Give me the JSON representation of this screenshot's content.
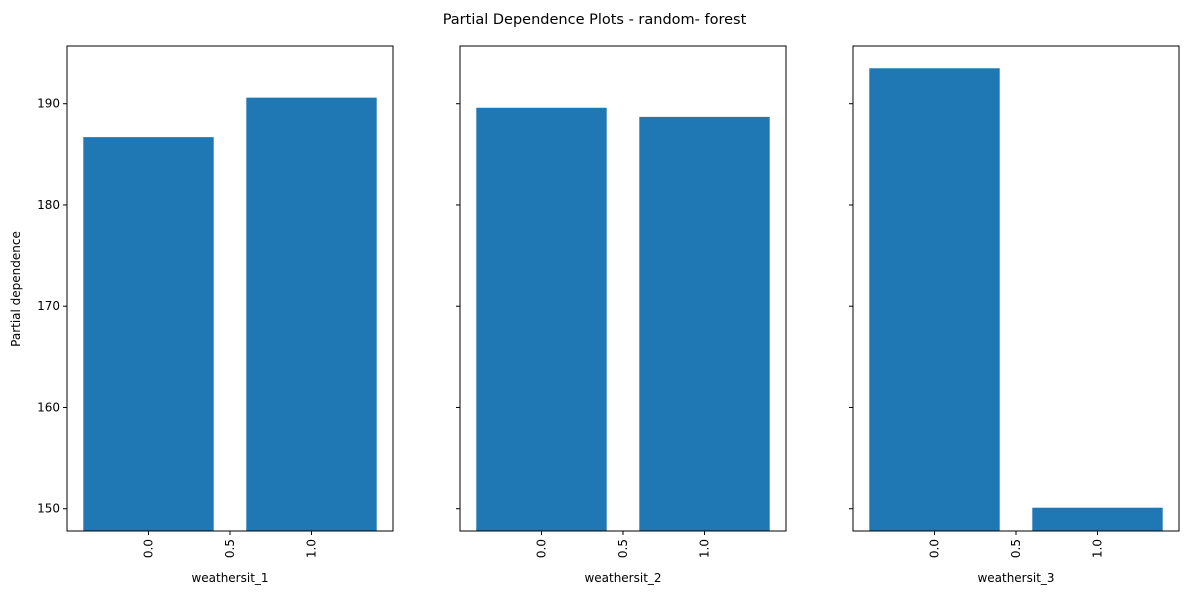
{
  "chart_data": {
    "type": "bar",
    "title": "Partial Dependence Plots - random- forest",
    "ylabel": "Partial dependence",
    "ylim": [
      147.8,
      195.7
    ],
    "yticks": [
      150,
      160,
      170,
      180,
      190
    ],
    "xlim": [
      -0.5,
      1.5
    ],
    "xticks": [
      "0.0",
      "0.5",
      "1.0"
    ],
    "bar_color": "#1f77b4",
    "subplots": [
      {
        "xlabel": "weathersit_1",
        "categories": [
          "0.0",
          "1.0"
        ],
        "values": [
          186.7,
          190.6
        ]
      },
      {
        "xlabel": "weathersit_2",
        "categories": [
          "0.0",
          "1.0"
        ],
        "values": [
          189.6,
          188.7
        ]
      },
      {
        "xlabel": "weathersit_3",
        "categories": [
          "0.0",
          "1.0"
        ],
        "values": [
          193.5,
          150.1
        ]
      }
    ]
  }
}
